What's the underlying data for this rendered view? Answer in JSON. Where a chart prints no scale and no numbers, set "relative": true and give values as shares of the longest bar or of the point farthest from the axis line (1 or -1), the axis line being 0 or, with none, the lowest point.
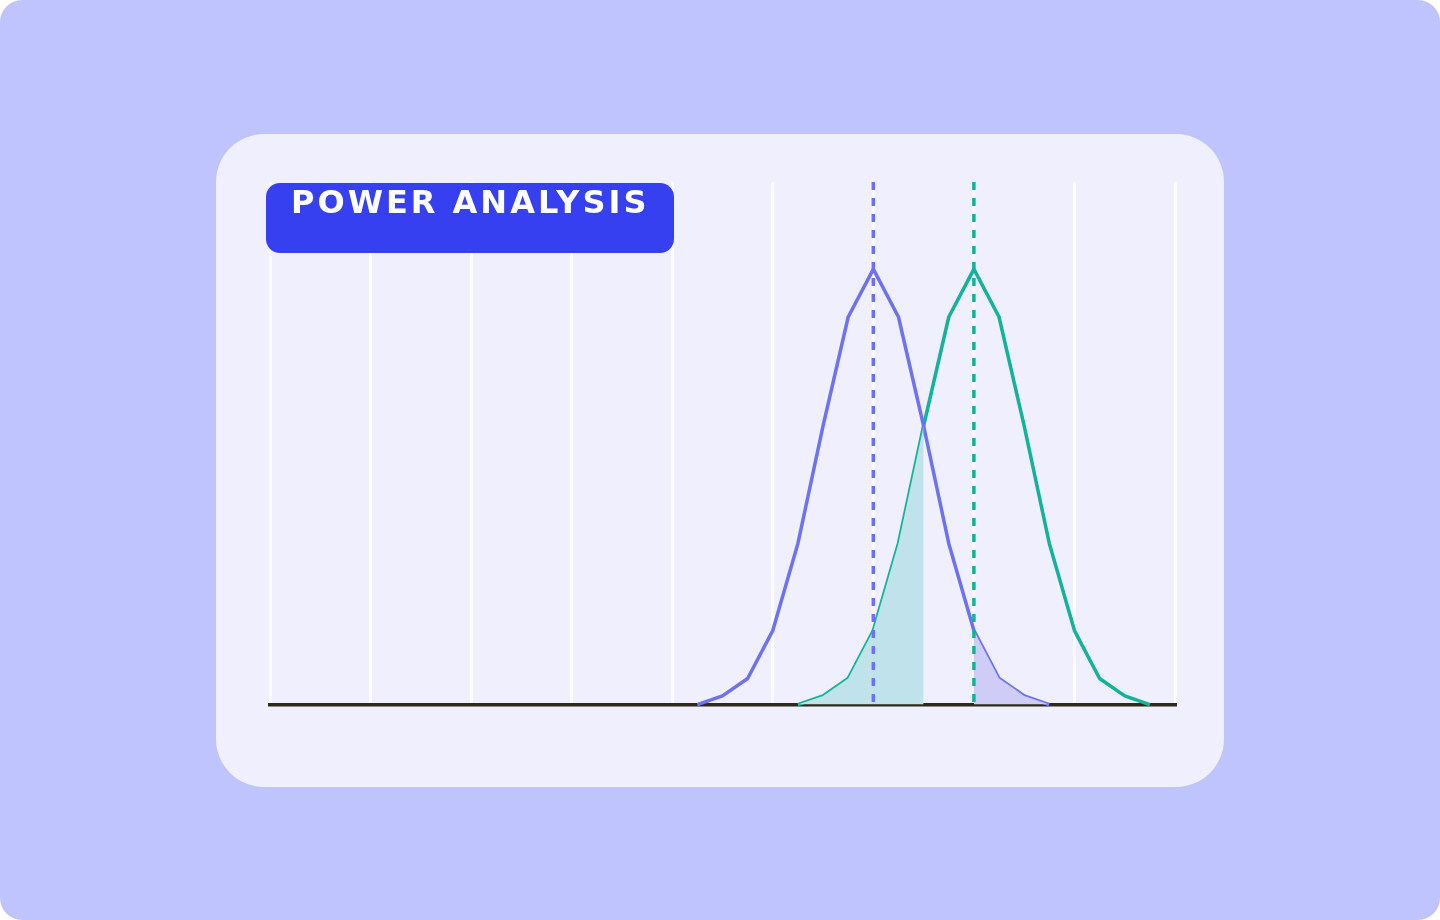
{
  "chart_data": {
    "type": "line",
    "title": "POWER ANALYSIS",
    "relative": true,
    "marker": "none",
    "line_style": "solid",
    "grid": "x",
    "categories": [
      null,
      null,
      null,
      null,
      null,
      null,
      null,
      null,
      null,
      null,
      null,
      null,
      null,
      null,
      null,
      null,
      null,
      null,
      null,
      null,
      null,
      null,
      null,
      null,
      null,
      null,
      null,
      null,
      null,
      null,
      null,
      null,
      null,
      null,
      null,
      null,
      null
    ],
    "series": [
      {
        "type": "area",
        "color": "#c0e2ea",
        "values": [
          null,
          null,
          null,
          null,
          null,
          null,
          null,
          null,
          null,
          null,
          null,
          null,
          null,
          null,
          null,
          null,
          null,
          null,
          null,
          null,
          null,
          0,
          0.02,
          0.06,
          0.17,
          0.37,
          0.64,
          null,
          null,
          null,
          null,
          null,
          null,
          null,
          null,
          null,
          null
        ]
      },
      {
        "type": "area",
        "color": "#cfcdf7",
        "values": [
          null,
          null,
          null,
          null,
          null,
          null,
          null,
          null,
          null,
          null,
          null,
          null,
          null,
          null,
          null,
          null,
          null,
          null,
          null,
          null,
          null,
          null,
          null,
          null,
          null,
          null,
          null,
          null,
          0.17,
          0.06,
          0.02,
          0,
          null,
          null,
          null,
          null,
          null
        ]
      },
      {
        "color": "#6e72f0",
        "values": [
          null,
          null,
          null,
          null,
          null,
          null,
          null,
          null,
          null,
          null,
          null,
          null,
          null,
          null,
          null,
          null,
          null,
          0,
          0.02,
          0.06,
          0.17,
          0.37,
          0.64,
          0.89,
          1,
          0.89,
          0.64,
          0.37,
          0.17,
          0.06,
          0.02,
          0,
          null,
          null,
          null,
          null,
          null
        ]
      },
      {
        "color": "#12b39a",
        "values": [
          null,
          null,
          null,
          null,
          null,
          null,
          null,
          null,
          null,
          null,
          null,
          null,
          null,
          null,
          null,
          null,
          null,
          null,
          null,
          null,
          null,
          0,
          0.02,
          0.06,
          0.17,
          0.37,
          0.64,
          0.89,
          1,
          0.89,
          0.64,
          0.37,
          0.17,
          0.06,
          0.02,
          0,
          null
        ]
      }
    ]
  }
}
